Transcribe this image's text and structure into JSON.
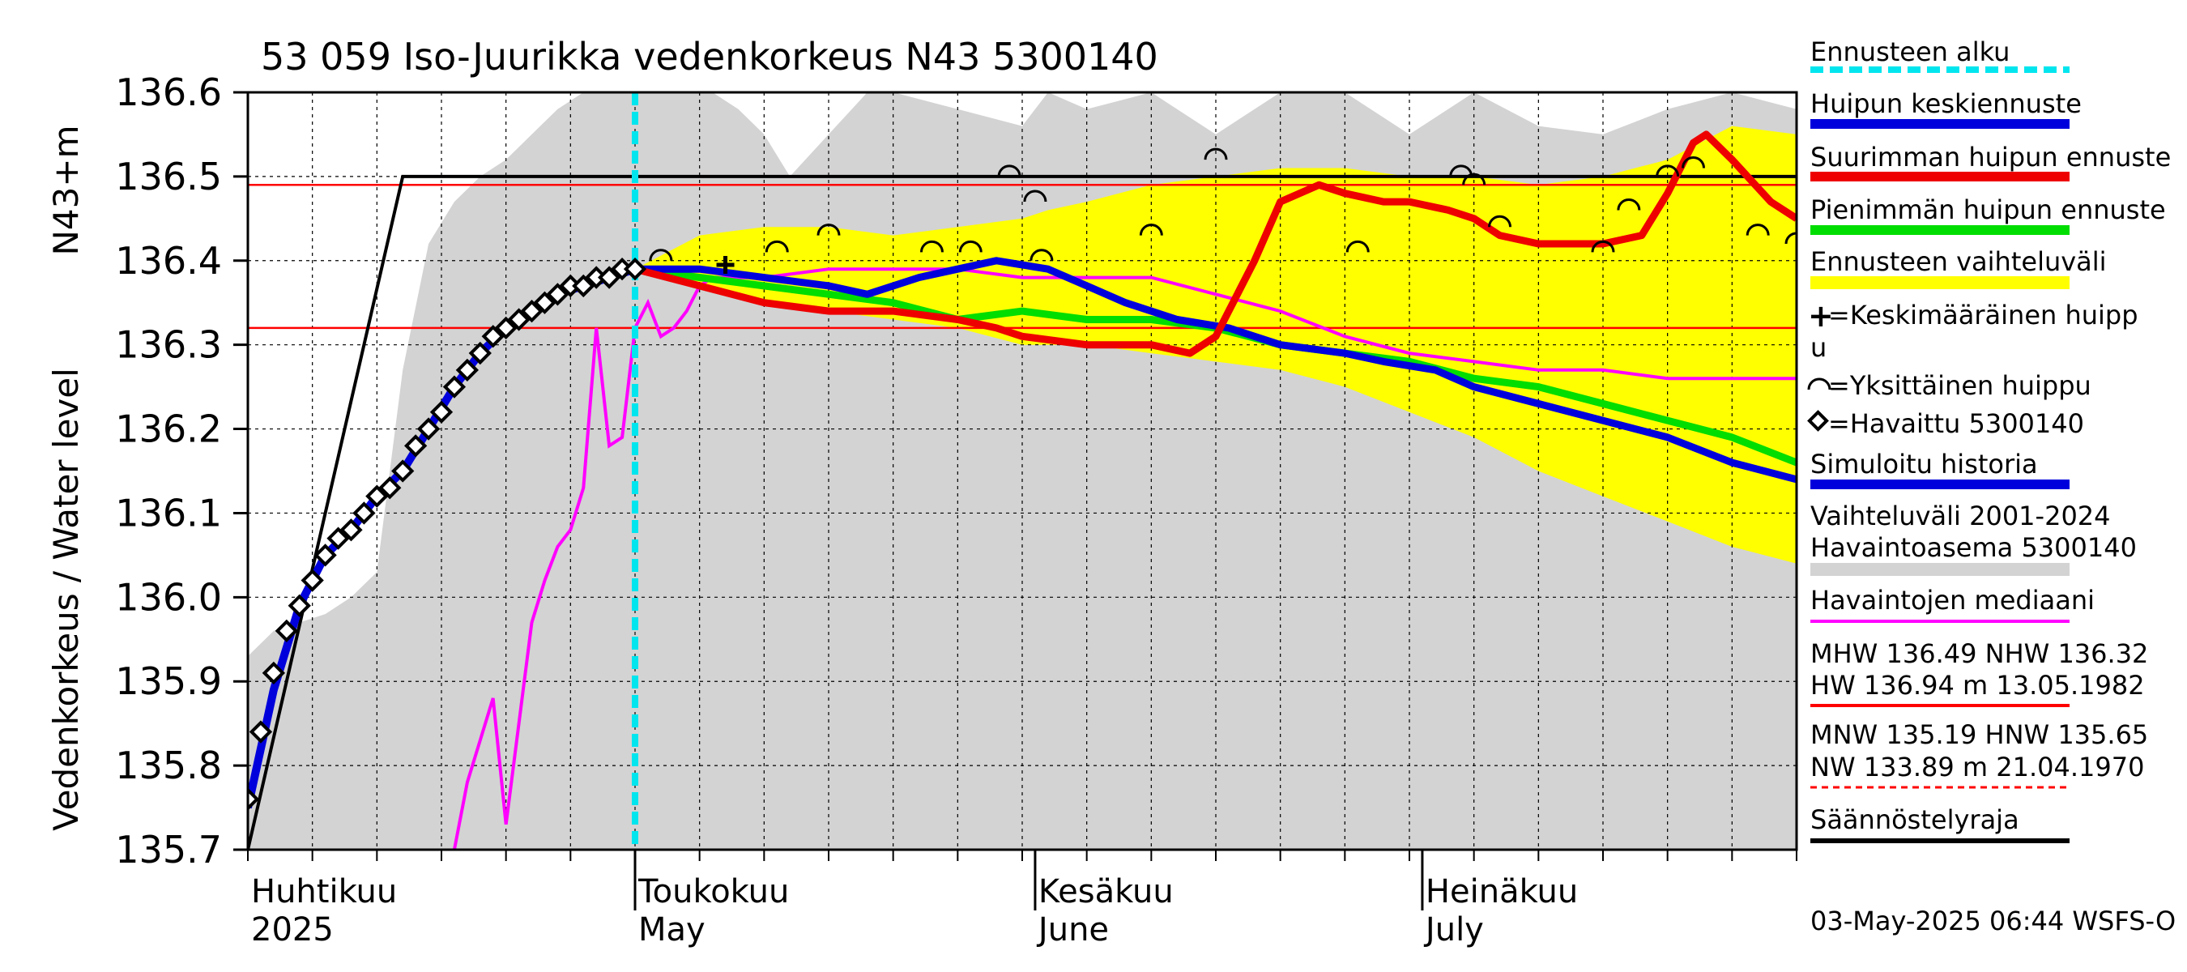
{
  "chart_data": {
    "type": "line",
    "title": "53 059 Iso-Juurikka vedenkorkeus N43 5300140",
    "ylabel_left": "Vedenkorkeus / Water level",
    "ylabel_unit": "N43+m",
    "ylim": [
      135.7,
      136.6
    ],
    "yticks": [
      "136.6",
      "136.5",
      "136.4",
      "136.3",
      "136.2",
      "136.1",
      "136.0",
      "135.9",
      "135.8",
      "135.7"
    ],
    "x_day_range": [
      0,
      120
    ],
    "month_labels": [
      {
        "day": 0,
        "fi": "Huhtikuu",
        "en": "2025"
      },
      {
        "day": 30,
        "fi": "Toukokuu",
        "en": "May"
      },
      {
        "day": 61,
        "fi": "Kesäkuu",
        "en": "June"
      },
      {
        "day": 91,
        "fi": "Heinäkuu",
        "en": "July"
      }
    ],
    "month_boundaries": [
      30,
      61,
      91
    ],
    "forecast_start_day": 30,
    "reference_lines": {
      "MHW": 136.49,
      "NHW": 136.32,
      "regulation_limit": 136.5
    },
    "regulation_line": {
      "x": [
        0,
        12,
        120
      ],
      "y": [
        135.7,
        136.5,
        136.5
      ]
    },
    "observed": {
      "name": "Havaittu 5300140",
      "x": [
        0,
        1,
        2,
        3,
        4,
        5,
        6,
        7,
        8,
        9,
        10,
        11,
        12,
        13,
        14,
        15,
        16,
        17,
        18,
        19,
        20,
        21,
        22,
        23,
        24,
        25,
        26,
        27,
        28,
        29,
        30
      ],
      "y": [
        135.76,
        135.84,
        135.91,
        135.96,
        135.99,
        136.02,
        136.05,
        136.07,
        136.08,
        136.1,
        136.12,
        136.13,
        136.15,
        136.18,
        136.2,
        136.22,
        136.25,
        136.27,
        136.29,
        136.31,
        136.32,
        136.33,
        136.34,
        136.35,
        136.36,
        136.37,
        136.37,
        136.38,
        136.38,
        136.39,
        136.39
      ]
    },
    "simulated_history": {
      "name": "Simuloitu historia",
      "x": [
        0,
        2,
        4,
        6,
        8,
        10,
        12,
        14,
        16,
        18,
        20,
        22,
        24,
        26,
        28,
        30
      ],
      "y": [
        135.75,
        135.89,
        135.99,
        136.05,
        136.08,
        136.12,
        136.15,
        136.2,
        136.25,
        136.29,
        136.32,
        136.34,
        136.36,
        136.37,
        136.38,
        136.39
      ]
    },
    "forecast_mean": {
      "name": "Huipun keskiennuste",
      "x": [
        30,
        35,
        40,
        45,
        48,
        52,
        55,
        58,
        62,
        65,
        68,
        72,
        76,
        80,
        85,
        88,
        92,
        95,
        100,
        105,
        110,
        115,
        120
      ],
      "y": [
        136.39,
        136.39,
        136.38,
        136.37,
        136.36,
        136.38,
        136.39,
        136.4,
        136.39,
        136.37,
        136.35,
        136.33,
        136.32,
        136.3,
        136.29,
        136.28,
        136.27,
        136.25,
        136.23,
        136.21,
        136.19,
        136.16,
        136.14
      ]
    },
    "forecast_min": {
      "name": "Pienimmän huipun ennuste",
      "x": [
        30,
        40,
        50,
        55,
        60,
        65,
        70,
        75,
        80,
        85,
        90,
        95,
        100,
        105,
        110,
        115,
        120
      ],
      "y": [
        136.39,
        136.37,
        136.35,
        136.33,
        136.34,
        136.33,
        136.33,
        136.32,
        136.3,
        136.29,
        136.28,
        136.26,
        136.25,
        136.23,
        136.21,
        136.19,
        136.16
      ]
    },
    "forecast_max": {
      "name": "Suurimman huipun ennuste",
      "x": [
        30,
        35,
        40,
        45,
        50,
        55,
        58,
        60,
        65,
        70,
        73,
        75,
        78,
        80,
        83,
        85,
        88,
        90,
        93,
        95,
        97,
        100,
        105,
        108,
        110,
        112,
        113,
        115,
        118,
        120
      ],
      "y": [
        136.39,
        136.37,
        136.35,
        136.34,
        136.34,
        136.33,
        136.32,
        136.31,
        136.3,
        136.3,
        136.29,
        136.31,
        136.4,
        136.47,
        136.49,
        136.48,
        136.47,
        136.47,
        136.46,
        136.45,
        136.43,
        136.42,
        136.42,
        136.43,
        136.48,
        136.54,
        136.55,
        136.52,
        136.47,
        136.45
      ]
    },
    "forecast_range": {
      "name": "Ennusteen vaihteluväli",
      "x": [
        30,
        35,
        40,
        45,
        50,
        55,
        60,
        62,
        65,
        70,
        75,
        80,
        85,
        90,
        95,
        100,
        105,
        110,
        115,
        120
      ],
      "upper": [
        136.39,
        136.43,
        136.44,
        136.44,
        136.43,
        136.44,
        136.45,
        136.46,
        136.47,
        136.49,
        136.5,
        136.51,
        136.51,
        136.5,
        136.5,
        136.49,
        136.5,
        136.52,
        136.56,
        136.55
      ],
      "lower": [
        136.39,
        136.37,
        136.35,
        136.34,
        136.33,
        136.32,
        136.3,
        136.3,
        136.3,
        136.29,
        136.28,
        136.27,
        136.25,
        136.22,
        136.19,
        136.15,
        136.12,
        136.09,
        136.06,
        136.04
      ]
    },
    "historical_range": {
      "name": "Vaihteluväli 2001-2024 Havaintoasema 5300140",
      "x": [
        0,
        2,
        4,
        6,
        8,
        10,
        12,
        14,
        16,
        18,
        20,
        22,
        24,
        26,
        28,
        30,
        32,
        34,
        36,
        38,
        40,
        42,
        45,
        48,
        50,
        55,
        60,
        62,
        65,
        70,
        75,
        80,
        85,
        90,
        95,
        100,
        105,
        110,
        115,
        120
      ],
      "upper": [
        135.93,
        135.96,
        135.97,
        135.98,
        136.0,
        136.03,
        136.27,
        136.42,
        136.47,
        136.5,
        136.52,
        136.55,
        136.58,
        136.6,
        136.6,
        136.6,
        136.6,
        136.6,
        136.6,
        136.58,
        136.55,
        136.5,
        136.55,
        136.6,
        136.6,
        136.58,
        136.56,
        136.6,
        136.58,
        136.6,
        136.55,
        136.6,
        136.6,
        136.55,
        136.6,
        136.56,
        136.55,
        136.58,
        136.6,
        136.58
      ],
      "lower": [
        135.7,
        135.7,
        135.7,
        135.7,
        135.7,
        135.7,
        135.7,
        135.7,
        135.7,
        135.7,
        135.7,
        135.7,
        135.7,
        135.7,
        135.7,
        135.7,
        135.7,
        135.7,
        135.7,
        135.7,
        135.7,
        135.7,
        135.7,
        135.7,
        135.7,
        135.7,
        135.7,
        135.7,
        135.7,
        135.7,
        135.7,
        135.7,
        135.7,
        135.7,
        135.7,
        135.7,
        135.7,
        135.7,
        135.7,
        135.7
      ]
    },
    "median": {
      "name": "Havaintojen mediaani",
      "x": [
        16,
        17,
        18,
        19,
        20,
        21,
        22,
        23,
        24,
        25,
        26,
        27,
        28,
        29,
        30,
        31,
        32,
        33,
        34,
        35,
        36,
        38,
        40,
        45,
        50,
        55,
        60,
        65,
        70,
        75,
        80,
        85,
        90,
        95,
        100,
        105,
        110,
        115,
        120
      ],
      "y": [
        135.7,
        135.78,
        135.83,
        135.88,
        135.73,
        135.85,
        135.97,
        136.02,
        136.06,
        136.08,
        136.13,
        136.32,
        136.18,
        136.19,
        136.32,
        136.35,
        136.31,
        136.32,
        136.34,
        136.37,
        136.38,
        136.38,
        136.38,
        136.39,
        136.39,
        136.39,
        136.38,
        136.38,
        136.38,
        136.36,
        136.34,
        136.31,
        136.29,
        136.28,
        136.27,
        136.27,
        136.26,
        136.26,
        136.26
      ]
    },
    "mean_peak_marker": {
      "x": 37,
      "y": 136.395
    },
    "individual_peaks": {
      "x": [
        32,
        41,
        45,
        53,
        56,
        59,
        61,
        61.5,
        70,
        75,
        86,
        94,
        95,
        97,
        105,
        107,
        110,
        112,
        117,
        120
      ],
      "y": [
        136.4,
        136.41,
        136.43,
        136.41,
        136.41,
        136.5,
        136.47,
        136.4,
        136.43,
        136.52,
        136.41,
        136.5,
        136.49,
        136.44,
        136.41,
        136.46,
        136.5,
        136.51,
        136.43,
        136.42
      ]
    }
  },
  "legend": {
    "forecast_start": "Ennusteen alku",
    "mean_peak_forecast": "Huipun keskiennuste",
    "max_peak_forecast": "Suurimman huipun ennuste",
    "min_peak_forecast": "Pienimmän huipun ennuste",
    "forecast_range": "Ennusteen vaihteluväli",
    "mean_peak_line1": "=Keskimääräinen huipp",
    "mean_peak_line2": "u",
    "single_peak": "=Yksittäinen huippu",
    "observed": "=Havaittu 5300140",
    "simulated": "Simuloitu historia",
    "hist_range_line1": "Vaihteluväli 2001-2024",
    "hist_range_line2": " Havaintoasema 5300140",
    "median": "Havaintojen mediaani",
    "stats_line1": "MHW 136.49 NHW 136.32",
    "stats_line2": "HW 136.94 m 13.05.1982",
    "stats_line3": "MNW 135.19 HNW 135.65",
    "stats_line4": "NW 133.89 m 21.04.1970",
    "regulation_limit": "Säännöstelyraja"
  },
  "footer": {
    "timestamp": "03-May-2025 06:44 WSFS-O"
  },
  "colors": {
    "forecast_start": "#00e5ee",
    "mean": "#0000dd",
    "max": "#ee0000",
    "min": "#00dd00",
    "range": "#ffff00",
    "hist": "#d3d3d3",
    "median": "#ff00ff",
    "ref_line": "#ff0000"
  }
}
